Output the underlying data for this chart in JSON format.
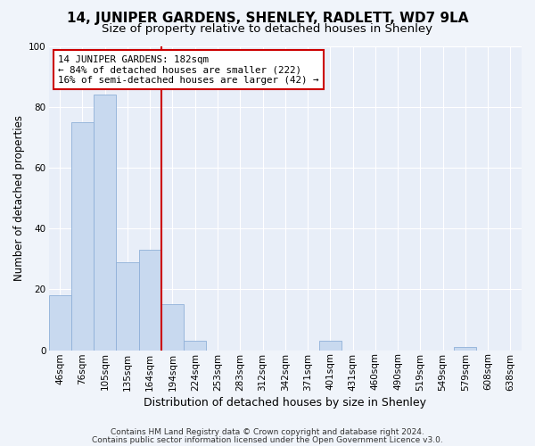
{
  "title": "14, JUNIPER GARDENS, SHENLEY, RADLETT, WD7 9LA",
  "subtitle": "Size of property relative to detached houses in Shenley",
  "xlabel": "Distribution of detached houses by size in Shenley",
  "ylabel": "Number of detached properties",
  "bar_labels": [
    "46sqm",
    "76sqm",
    "105sqm",
    "135sqm",
    "164sqm",
    "194sqm",
    "224sqm",
    "253sqm",
    "283sqm",
    "312sqm",
    "342sqm",
    "371sqm",
    "401sqm",
    "431sqm",
    "460sqm",
    "490sqm",
    "519sqm",
    "549sqm",
    "579sqm",
    "608sqm",
    "638sqm"
  ],
  "bar_values": [
    18,
    75,
    84,
    29,
    33,
    15,
    3,
    0,
    0,
    0,
    0,
    0,
    3,
    0,
    0,
    0,
    0,
    0,
    1,
    0,
    0
  ],
  "bar_color": "#c8d9ef",
  "bar_edge_color": "#8fb0d8",
  "vline_color": "#cc0000",
  "annotation_line1": "14 JUNIPER GARDENS: 182sqm",
  "annotation_line2": "← 84% of detached houses are smaller (222)",
  "annotation_line3": "16% of semi-detached houses are larger (42) →",
  "annotation_box_color": "#ffffff",
  "annotation_box_edge": "#cc0000",
  "ylim": [
    0,
    100
  ],
  "yticks": [
    0,
    20,
    40,
    60,
    80,
    100
  ],
  "footer_line1": "Contains HM Land Registry data © Crown copyright and database right 2024.",
  "footer_line2": "Contains public sector information licensed under the Open Government Licence v3.0.",
  "background_color": "#f0f4fa",
  "plot_bg_color": "#e8eef8",
  "grid_color": "#ffffff",
  "title_fontsize": 11,
  "subtitle_fontsize": 9.5,
  "xlabel_fontsize": 9,
  "ylabel_fontsize": 8.5,
  "tick_fontsize": 7.5,
  "footer_fontsize": 6.5,
  "vline_index": 4.5
}
